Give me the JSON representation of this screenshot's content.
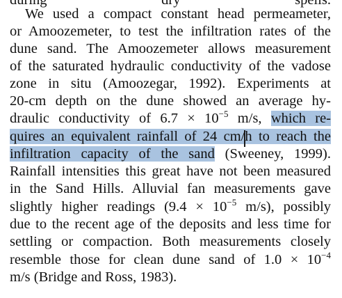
{
  "document": {
    "clipped_top_line": "during dry spells.",
    "lines": [
      {
        "text": "We used a compact constant head permeameter,"
      },
      {
        "text": "or Amoozemeter, to test the infiltration rates of the"
      },
      {
        "text": "dune sand. The Amoozemeter allows measurement"
      },
      {
        "text": "of the saturated hydraulic conductivity of the vadose"
      },
      {
        "text": "zone in situ (Amoozegar, 1992). Experiments at"
      },
      {
        "text": "20-cm depth on the dune showed an average hy-"
      },
      {
        "pre": "draulic conductivity of 6.7 × 10",
        "sup": "−5",
        "post": " m/s, ",
        "highlight": "which re-"
      },
      {
        "highlight": "quires an equivalent rainfall of 24 cm/h to reach the"
      },
      {
        "highlight": "infiltration capacity of the sand",
        "post": " (Sweeney, 1999)."
      },
      {
        "text": "Rainfall intensities this great have not been measured"
      },
      {
        "text": "in the Sand Hills. Alluvial fan measurements gave"
      },
      {
        "pre": "slightly higher readings (9.4 × 10",
        "sup": "−5",
        "post": " m/s), possibly"
      },
      {
        "text": "due to the recent age of the deposits and less time for"
      },
      {
        "text": "settling or compaction. Both measurements closely"
      },
      {
        "pre": "resemble those for clean dune sand of 1.0 × 10",
        "sup": "−4"
      },
      {
        "text": "m/s (Bridge and Ross, 1983)."
      }
    ]
  },
  "colors": {
    "selection_highlight": "#a9c3e0",
    "text": "#111111",
    "background": "#ffffff"
  }
}
